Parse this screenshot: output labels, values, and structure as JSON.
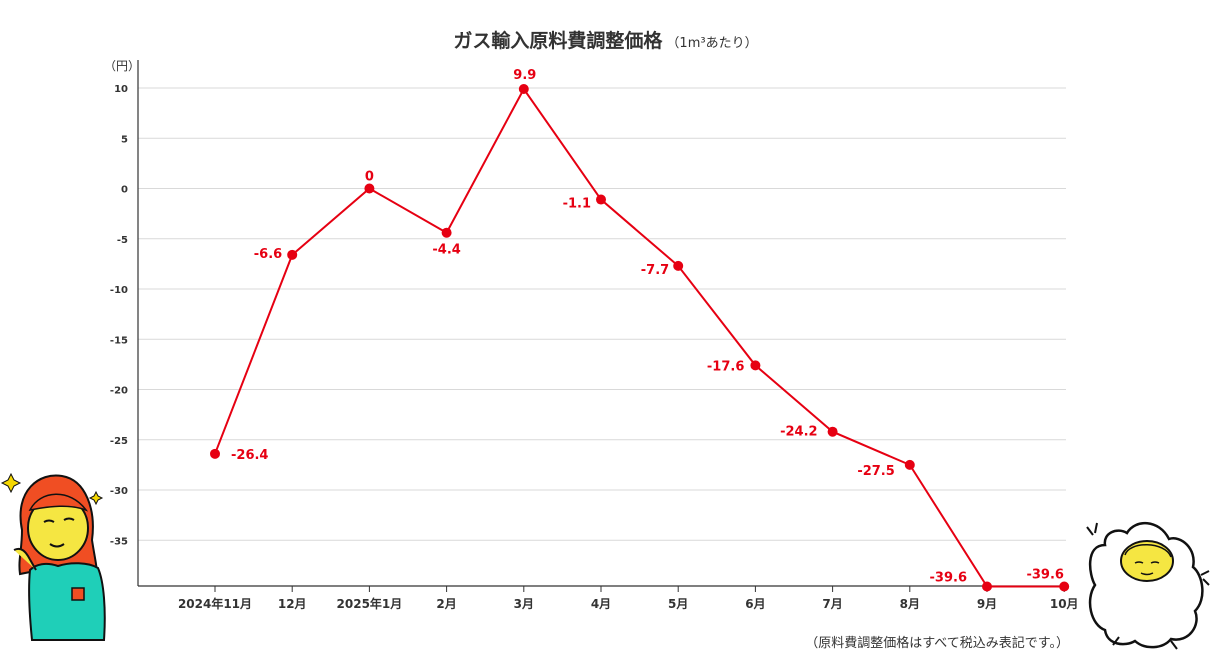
{
  "chart_data": {
    "type": "line",
    "title": "ガス輸入原料費調整価格",
    "title_unit": "（1m³あたり）",
    "ylabel": "（円）",
    "footnote": "（原料費調整価格はすべて税込み表記です。）",
    "categories": [
      "2024年11月",
      "12月",
      "2025年1月",
      "2月",
      "3月",
      "4月",
      "5月",
      "6月",
      "7月",
      "8月",
      "9月",
      "10月"
    ],
    "series": [
      {
        "values": [
          -26.4,
          -6.6,
          0,
          -4.4,
          9.9,
          -1.1,
          -7.7,
          -17.6,
          -24.2,
          -27.5,
          -39.6,
          -39.6
        ],
        "labels": [
          "-26.4",
          "-6.6",
          "0",
          "-4.4",
          "9.9",
          "-1.1",
          "-7.7",
          "-17.6",
          "-24.2",
          "-27.5",
          "-39.6",
          "-39.6"
        ],
        "color": "#e60012"
      }
    ],
    "yticks": [
      10,
      5,
      0,
      -5,
      -10,
      -15,
      -20,
      -25,
      -30,
      -35
    ],
    "ylim": [
      -39.6,
      12
    ],
    "grid": true
  },
  "decorations": {
    "left_character": "woman-illustration",
    "right_character": "sheep-illustration"
  }
}
